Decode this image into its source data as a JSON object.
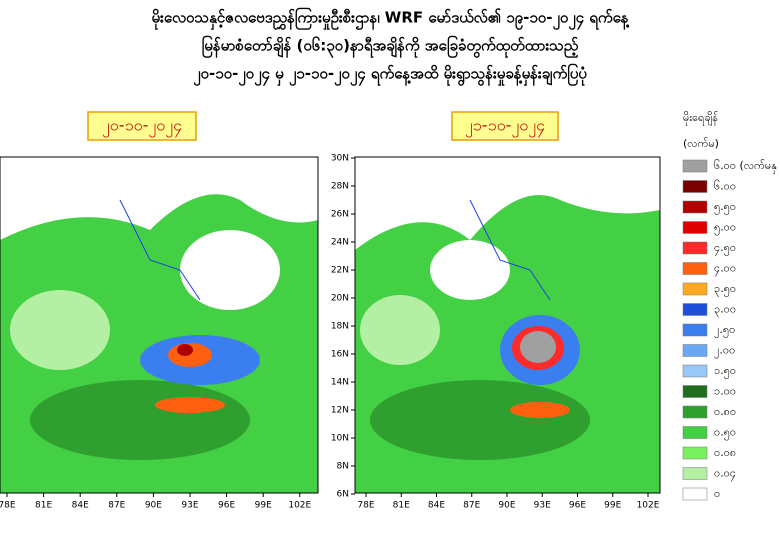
{
  "header": {
    "lines": [
      "မိုးလေဝသနှင့်ဇလဗေဒညွှန်ကြားမှုဦးစီးဌာန၊ WRF မော်ဒယ်လ်၏ ၁၉-၁၀-၂၀၂၄ ရက်နေ့",
      "မြန်မာစံတော်ချိန် (၀၆:၃၀)နာရီအချိန်ကို အခြေခံတွက်ထုတ်ထားသည့်",
      "၂၀-၁၀-၂၀၂၄ မှ ၂၁-၁၀-၂၀၂၄ ရက်နေ့အထိ မိုးရွာသွန်းမှုခန့်မှန်းချက်ပြပုံ"
    ]
  },
  "panels": [
    {
      "date": "၂၀-၁၀-၂၀၂၄"
    },
    {
      "date": "၂၁-၁၀-၂၀၂၄"
    }
  ],
  "map_axes": {
    "x_ticks": [
      "78E",
      "81E",
      "84E",
      "87E",
      "90E",
      "93E",
      "96E",
      "99E",
      "102E"
    ],
    "y_ticks": [
      "30N",
      "28N",
      "26N",
      "24N",
      "22N",
      "20N",
      "18N",
      "16N",
      "14N",
      "12N",
      "10N",
      "8N",
      "6N"
    ]
  },
  "legend": {
    "title": "မိုးရေချိန်",
    "unit": "(လက်မ)",
    "items": [
      {
        "label": "၆.၀၀ (လက်မနှ",
        "color": "#a0a0a0"
      },
      {
        "label": "၆.၀၀",
        "color": "#7a0000"
      },
      {
        "label": "၅.၅၀",
        "color": "#b00000"
      },
      {
        "label": "၅.၀၀",
        "color": "#e00000"
      },
      {
        "label": "၄.၅၀",
        "color": "#ff2a2a"
      },
      {
        "label": "၄.၀၀",
        "color": "#ff6010"
      },
      {
        "label": "၃.၅၀",
        "color": "#ffa820"
      },
      {
        "label": "၃.၀၀",
        "color": "#1f4fd8"
      },
      {
        "label": "၂.၅၀",
        "color": "#3a7ef0"
      },
      {
        "label": "၂.၀၀",
        "color": "#6aa8f4"
      },
      {
        "label": "၁.၅၀",
        "color": "#98c8f8"
      },
      {
        "label": "၁.၀၀",
        "color": "#1e6e1e"
      },
      {
        "label": "၀.၈၀",
        "color": "#2fa02f"
      },
      {
        "label": "၀.၅၀",
        "color": "#44d044"
      },
      {
        "label": "၀.၀၈",
        "color": "#78f060"
      },
      {
        "label": "၀.၀၄",
        "color": "#b4f0a4"
      },
      {
        "label": "၀",
        "color": "#ffffff"
      }
    ]
  }
}
